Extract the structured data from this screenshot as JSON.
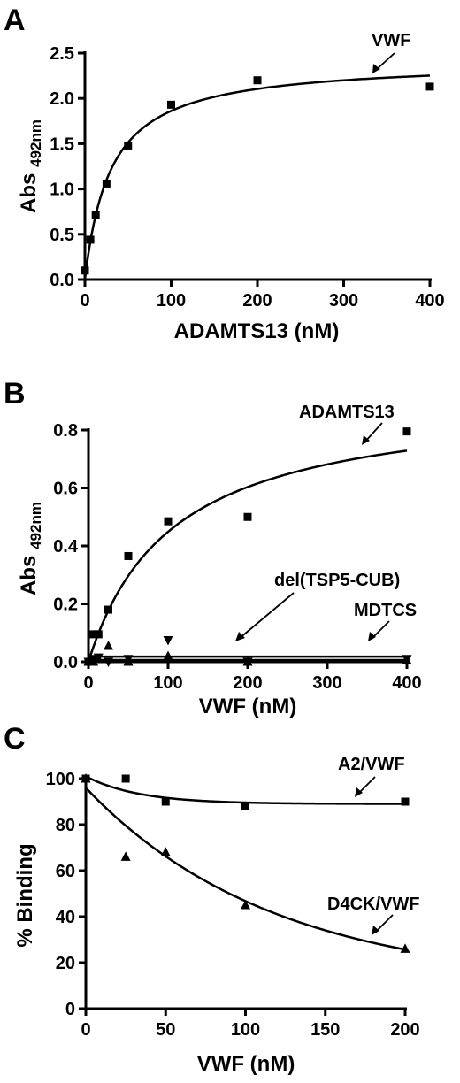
{
  "chart_data": [
    {
      "panel": "A",
      "type": "scatter",
      "xlabel": "ADAMTS13 (nM)",
      "ylabel_main": "Abs ",
      "ylabel_sub": "492nm",
      "xlim": [
        0,
        400
      ],
      "ylim": [
        0,
        2.5
      ],
      "xticks": [
        "0",
        "100",
        "200",
        "300",
        "400"
      ],
      "yticks": [
        "0.0",
        "0.5",
        "1.0",
        "1.5",
        "2.0",
        "2.5"
      ],
      "series": [
        {
          "name": "VWF",
          "marker": "square",
          "x": [
            0,
            6.25,
            12.5,
            25,
            50,
            100,
            200,
            400
          ],
          "y": [
            0.1,
            0.44,
            0.71,
            1.06,
            1.48,
            1.93,
            2.2,
            2.13
          ],
          "fit": {
            "model": "hyperbola",
            "bmax": 2.42,
            "kd": 30
          }
        }
      ]
    },
    {
      "panel": "B",
      "type": "scatter",
      "xlabel": "VWF (nM)",
      "ylabel_main": "Abs ",
      "ylabel_sub": "492nm",
      "xlim": [
        0,
        400
      ],
      "ylim": [
        0,
        0.8
      ],
      "xticks": [
        "0",
        "100",
        "200",
        "300",
        "400"
      ],
      "yticks": [
        "0.0",
        "0.2",
        "0.4",
        "0.6",
        "0.8"
      ],
      "series": [
        {
          "name": "ADAMTS13",
          "marker": "square",
          "x": [
            0,
            6.25,
            12.5,
            25,
            50,
            100,
            200,
            400
          ],
          "y": [
            0.0,
            0.095,
            0.095,
            0.18,
            0.365,
            0.485,
            0.5,
            0.795
          ],
          "fit": {
            "model": "hyperbola",
            "bmax": 0.92,
            "kd": 105
          }
        },
        {
          "name": "del(TSP5-CUB)",
          "marker": "triangle-down",
          "x": [
            0,
            6.25,
            12.5,
            25,
            50,
            100,
            200,
            400
          ],
          "y": [
            0.0,
            0.01,
            0.015,
            0.0,
            0.01,
            0.075,
            0.0,
            0.01
          ],
          "fit": {
            "model": "constant",
            "value": 0.018
          }
        },
        {
          "name": "MDTCS",
          "marker": "triangle-up",
          "x": [
            0,
            6.25,
            12.5,
            25,
            50,
            100,
            200,
            400
          ],
          "y": [
            0.0,
            0.0,
            0.01,
            0.055,
            0.0,
            0.02,
            0.0,
            0.005
          ],
          "fit": {
            "model": "constant",
            "value": 0.006
          }
        }
      ]
    },
    {
      "panel": "C",
      "type": "scatter",
      "xlabel": "VWF (nM)",
      "ylabel_main": "% Binding",
      "ylabel_sub": "",
      "xlim": [
        0,
        200
      ],
      "ylim": [
        0,
        100
      ],
      "xticks": [
        "0",
        "50",
        "100",
        "150",
        "200"
      ],
      "yticks": [
        "0",
        "20",
        "40",
        "60",
        "80",
        "100"
      ],
      "series": [
        {
          "name": "A2/VWF",
          "marker": "square",
          "x": [
            0,
            25,
            50,
            100,
            200
          ],
          "y": [
            100,
            100,
            90,
            88,
            90
          ],
          "fit": {
            "model": "exp-decay",
            "plateau": 89,
            "span": 12,
            "k": 0.03
          }
        },
        {
          "name": "D4CK/VWF",
          "marker": "triangle-up",
          "x": [
            0,
            25,
            50,
            100,
            200
          ],
          "y": [
            100,
            66,
            68,
            45,
            26
          ],
          "fit": {
            "model": "exp-decay",
            "plateau": 10,
            "span": 86,
            "k": 0.0085
          }
        }
      ]
    }
  ]
}
